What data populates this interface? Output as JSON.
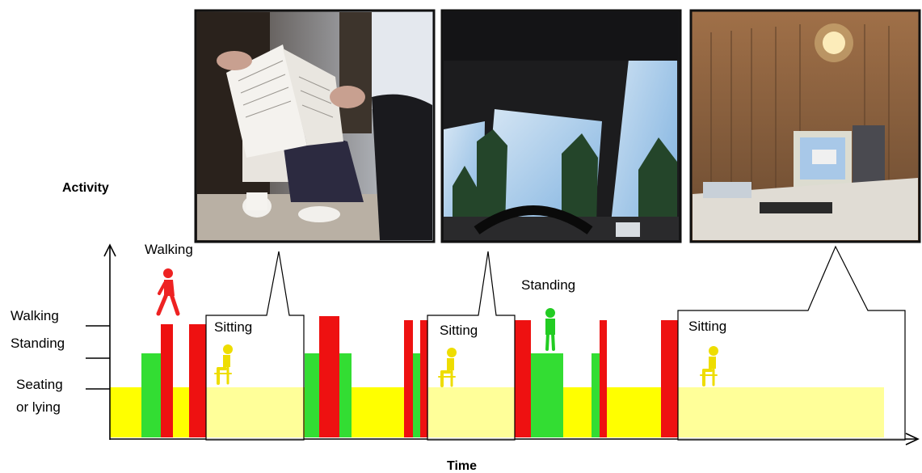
{
  "axis": {
    "y_title": "Activity",
    "x_title": "Time"
  },
  "levels": [
    {
      "label": "Walking"
    },
    {
      "label": "Standing"
    },
    {
      "label": "Seating"
    },
    {
      "label": "or lying"
    }
  ],
  "annotations": {
    "walking": "Walking",
    "standing": "Standing"
  },
  "callouts": [
    {
      "label": "Sitting",
      "photo": "Photo of a café table: hands holding a printed paper menu, coffee cups on the table"
    },
    {
      "label": "Sitting",
      "photo": "Photo from a car driver seat: windshield, steering wheel and trees outside"
    },
    {
      "label": "Sitting",
      "photo": "Photo of an office: computer monitor on a desk, wall lamp"
    }
  ],
  "colors": {
    "seated": "#ffff00",
    "standing": "#33dd33",
    "walking": "#ee1111",
    "walking_icon": "#ee2222",
    "standing_icon": "#22cc22",
    "sitting_icon": "#eedd00"
  },
  "chart_data": {
    "type": "bar",
    "x_title": "Time",
    "y_title": "Activity",
    "activity_levels": [
      "Seating or lying",
      "Standing",
      "Walking"
    ],
    "segments": [
      {
        "activity": "Standing",
        "start": 0,
        "end": 4
      },
      {
        "activity": "Walking",
        "start": 4,
        "end": 8
      },
      {
        "activity": "Walking",
        "start": 10,
        "end": 15
      },
      {
        "activity": "Sitting",
        "start": 15,
        "end": 26
      },
      {
        "activity": "Standing",
        "start": 26,
        "end": 30
      },
      {
        "activity": "Walking",
        "start": 30,
        "end": 35
      },
      {
        "activity": "Standing",
        "start": 35,
        "end": 38
      },
      {
        "activity": "Walking",
        "start": 39,
        "end": 41
      },
      {
        "activity": "Standing",
        "start": 41,
        "end": 42
      },
      {
        "activity": "Walking",
        "start": 42,
        "end": 44
      },
      {
        "activity": "Sitting",
        "start": 44,
        "end": 54
      },
      {
        "activity": "Walking",
        "start": 54,
        "end": 58
      },
      {
        "activity": "Standing",
        "start": 58,
        "end": 65
      },
      {
        "activity": "Standing",
        "start": 68,
        "end": 70
      },
      {
        "activity": "Walking",
        "start": 70,
        "end": 71
      },
      {
        "activity": "Walking",
        "start": 77,
        "end": 81
      },
      {
        "activity": "Sitting",
        "start": 81,
        "end": 100
      }
    ]
  }
}
